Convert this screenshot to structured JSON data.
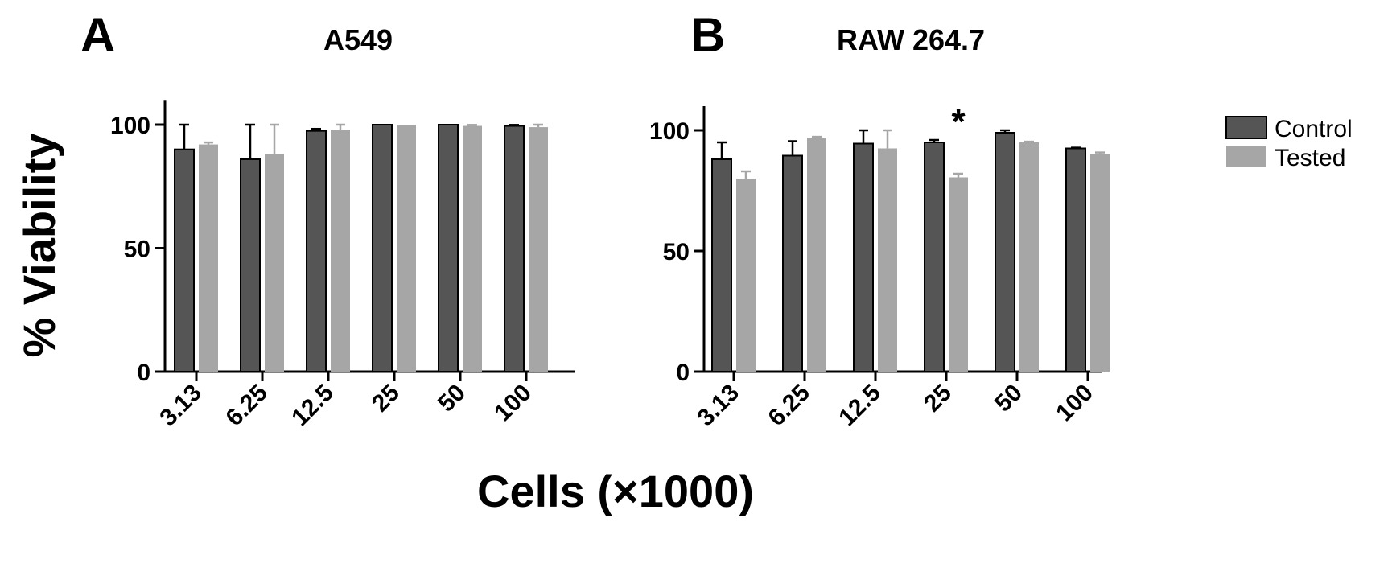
{
  "figure": {
    "ylabel": "% Viability",
    "xlabel": "Cells (×1000)"
  },
  "legend": {
    "placement": "right",
    "entries": [
      {
        "name": "Control",
        "color": "#555555"
      },
      {
        "name": "Tested",
        "color": "#a6a6a6"
      }
    ]
  },
  "chart_data": [
    {
      "type": "bar",
      "panel_letter": "A",
      "title": "A549",
      "categories": [
        "3.13",
        "6.25",
        "12.5",
        "25",
        "50",
        "100"
      ],
      "ylim": [
        0,
        110
      ],
      "yticks": [
        0,
        50,
        100
      ],
      "grid": false,
      "series": [
        {
          "name": "Control",
          "color": "#555555",
          "values": [
            90,
            86,
            97.5,
            100,
            100,
            99.5
          ],
          "errors": [
            10,
            14,
            0.8,
            0,
            0,
            0.4
          ]
        },
        {
          "name": "Tested",
          "color": "#a6a6a6",
          "values": [
            92,
            88,
            98,
            100,
            99.5,
            99
          ],
          "errors": [
            0.8,
            12,
            2,
            0,
            0.4,
            1
          ]
        }
      ],
      "annotations": []
    },
    {
      "type": "bar",
      "panel_letter": "B",
      "title": "RAW 264.7",
      "categories": [
        "3.13",
        "6.25",
        "12.5",
        "25",
        "50",
        "100"
      ],
      "ylim": [
        0,
        110
      ],
      "yticks": [
        0,
        50,
        100
      ],
      "grid": false,
      "series": [
        {
          "name": "Control",
          "color": "#555555",
          "values": [
            88,
            89.5,
            94.5,
            95,
            99,
            92.5
          ],
          "errors": [
            7,
            6,
            5.5,
            1,
            1,
            0.3
          ]
        },
        {
          "name": "Tested",
          "color": "#a6a6a6",
          "values": [
            80,
            97,
            92.5,
            80.5,
            95,
            90
          ],
          "errors": [
            3,
            0.3,
            7.5,
            1.5,
            0.3,
            0.8
          ]
        }
      ],
      "annotations": [
        {
          "category": "25",
          "series": "Tested",
          "text": "*"
        }
      ]
    }
  ]
}
